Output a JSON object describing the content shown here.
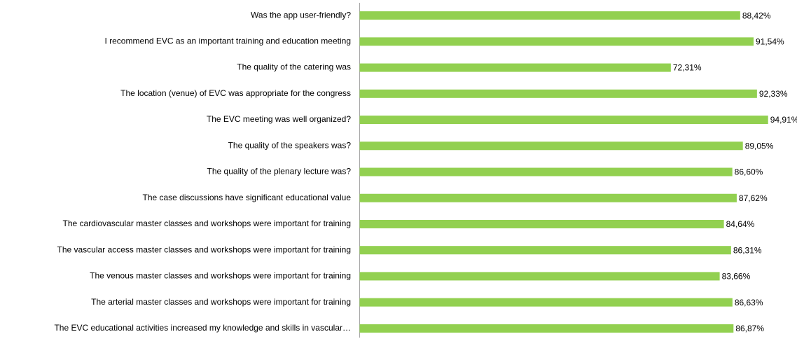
{
  "chart_data": {
    "type": "barh",
    "categories": [
      "Was the app user-friendly?",
      "I recommend EVC as an important training and education meeting",
      "The quality of the catering was",
      "The location (venue) of EVC was appropriate for the congress",
      "The EVC meeting was well organized?",
      "The quality of the speakers was?",
      "The quality of the plenary lecture was?",
      "The case discussions have significant educational value",
      "The cardiovascular master classes and workshops were important for training",
      "The vascular access master classes and workshops were important for training",
      "The venous master classes and workshops were important for training",
      "The arterial master classes and workshops were important for training",
      "The EVC educational activities increased my knowledge and skills in vascular…"
    ],
    "values": [
      88.42,
      91.54,
      72.31,
      92.33,
      94.91,
      89.05,
      86.6,
      87.62,
      84.64,
      86.31,
      83.66,
      86.63,
      86.87
    ],
    "value_labels": [
      "88,42%",
      "91,54%",
      "72,31%",
      "92,33%",
      "94,91%",
      "89,05%",
      "86,60%",
      "87,62%",
      "84,64%",
      "86,31%",
      "83,66%",
      "86,63%",
      "86,87%"
    ],
    "color": "#92d050",
    "xlim": [
      0,
      100
    ]
  }
}
